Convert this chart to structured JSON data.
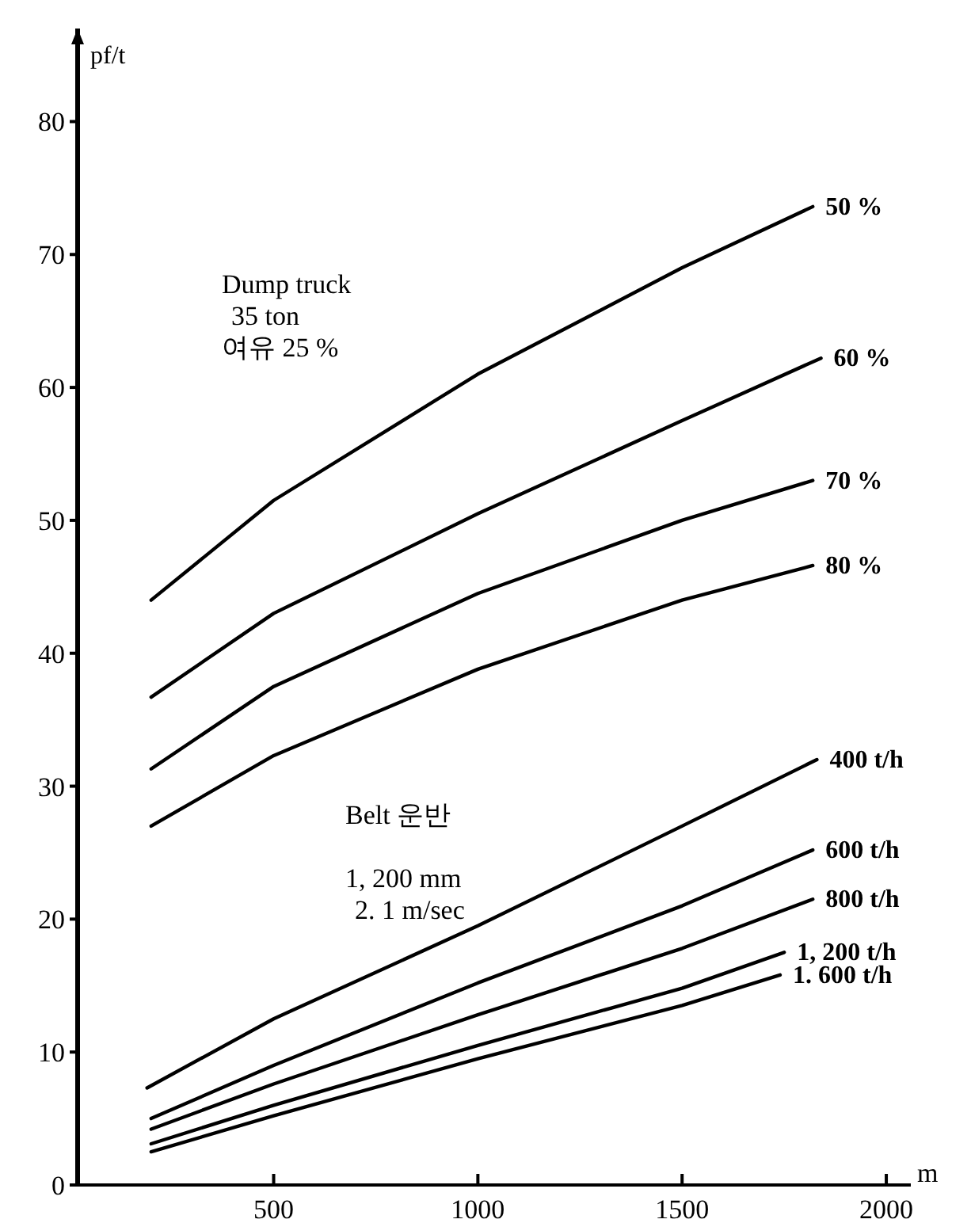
{
  "chart_data": {
    "type": "line",
    "xlabel": "m",
    "ylabel": "pf/t",
    "xlim": [
      20,
      2060
    ],
    "ylim": [
      0,
      87
    ],
    "xticks": [
      500,
      1000,
      1500,
      2000
    ],
    "yticks": [
      0,
      10,
      20,
      30,
      40,
      50,
      60,
      70,
      80
    ],
    "grid": false,
    "marker": "none",
    "line_style": "solid",
    "annotations": [
      "Dump truck\n 35 ton\n여유 25 %",
      "Belt 운반\n\n1, 200 mm\n 2. 1 m/sec"
    ],
    "series": [
      {
        "name": "50 %",
        "color": "#000000",
        "x": [
          200,
          500,
          1000,
          1500,
          1820
        ],
        "values": [
          44,
          51.5,
          61,
          69,
          73.6
        ]
      },
      {
        "name": "60 %",
        "color": "#000000",
        "x": [
          200,
          500,
          1000,
          1500,
          1840
        ],
        "values": [
          36.7,
          43,
          50.5,
          57.5,
          62.2
        ]
      },
      {
        "name": "70 %",
        "color": "#000000",
        "x": [
          200,
          500,
          1000,
          1500,
          1820
        ],
        "values": [
          31.3,
          37.5,
          44.5,
          50,
          53
        ]
      },
      {
        "name": "80 %",
        "color": "#000000",
        "x": [
          200,
          500,
          1000,
          1500,
          1820
        ],
        "values": [
          27,
          32.3,
          38.8,
          44,
          46.6
        ]
      },
      {
        "name": "400 t/h",
        "color": "#000000",
        "x": [
          190,
          500,
          1000,
          1500,
          1830
        ],
        "values": [
          7.3,
          12.5,
          19.5,
          27,
          32
        ]
      },
      {
        "name": "600 t/h",
        "color": "#000000",
        "x": [
          200,
          500,
          1000,
          1500,
          1820
        ],
        "values": [
          5,
          9,
          15.2,
          21,
          25.2
        ]
      },
      {
        "name": "800 t/h",
        "color": "#000000",
        "x": [
          200,
          500,
          1000,
          1500,
          1820
        ],
        "values": [
          4.2,
          7.6,
          12.8,
          17.8,
          21.5
        ]
      },
      {
        "name": "1, 200 t/h",
        "color": "#000000",
        "x": [
          200,
          500,
          1000,
          1500,
          1750
        ],
        "values": [
          3.1,
          6,
          10.5,
          14.8,
          17.5
        ]
      },
      {
        "name": "1. 600 t/h",
        "color": "#000000",
        "x": [
          200,
          500,
          1000,
          1500,
          1740
        ],
        "values": [
          2.5,
          5.2,
          9.5,
          13.5,
          15.8
        ]
      }
    ]
  }
}
